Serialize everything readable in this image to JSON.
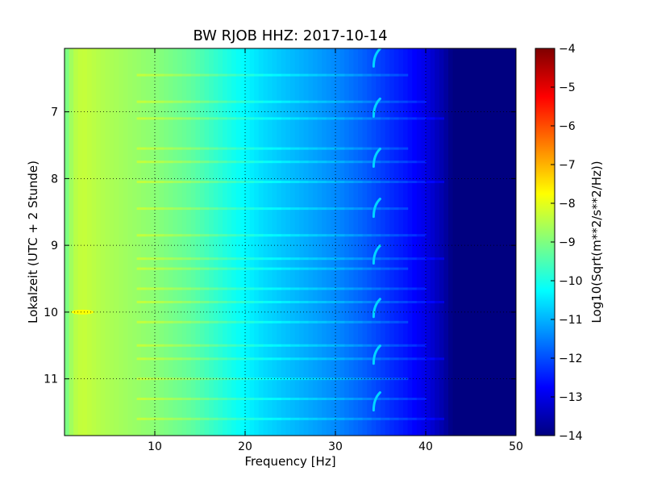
{
  "chart_data": {
    "type": "heatmap",
    "title": "BW RJOB HHZ: 2017-10-14",
    "xlabel": "Frequency [Hz]",
    "ylabel": "Lokalzeit (UTC + 2 Stunde)",
    "xlim": [
      0,
      50
    ],
    "ylim": [
      6.05,
      11.85
    ],
    "y_inverted": true,
    "x_ticks": [
      10,
      20,
      30,
      40,
      50
    ],
    "y_ticks": [
      7,
      8,
      9,
      10,
      11
    ],
    "grid": true,
    "colormap": "jet",
    "colorbar": {
      "label": "Log10(Sqrt(m**2/s**2/Hz))",
      "min": -14,
      "max": -4,
      "ticks": [
        -4,
        -5,
        -6,
        -7,
        -8,
        -9,
        -10,
        -11,
        -12,
        -13,
        -14
      ]
    },
    "spectrum_profile": {
      "frequency_hz": [
        0,
        1,
        2,
        4,
        7,
        10,
        14,
        17,
        20,
        22,
        25,
        28,
        30,
        33,
        36,
        38,
        40,
        42,
        43,
        50
      ],
      "log10_amplitude": [
        -9.2,
        -8.5,
        -8.3,
        -8.5,
        -8.7,
        -8.9,
        -9.3,
        -9.8,
        -10.3,
        -10.6,
        -10.9,
        -11.2,
        -11.4,
        -11.8,
        -12.3,
        -12.6,
        -13.0,
        -13.6,
        -14.0,
        -14.0
      ]
    },
    "features": {
      "horizontal_bands_hours": [
        6.45,
        6.85,
        7.1,
        7.55,
        7.75,
        8.05,
        8.45,
        8.85,
        9.2,
        9.35,
        9.65,
        9.85,
        10.15,
        10.5,
        10.7,
        11.0,
        11.3,
        11.6
      ],
      "tone_hz": 34.5,
      "tone_event_hours": [
        6.2,
        6.95,
        7.7,
        8.45,
        9.15,
        9.95,
        10.65,
        11.35
      ],
      "hot_spot": {
        "frequency_hz": 2,
        "hour": 10.0
      }
    }
  }
}
